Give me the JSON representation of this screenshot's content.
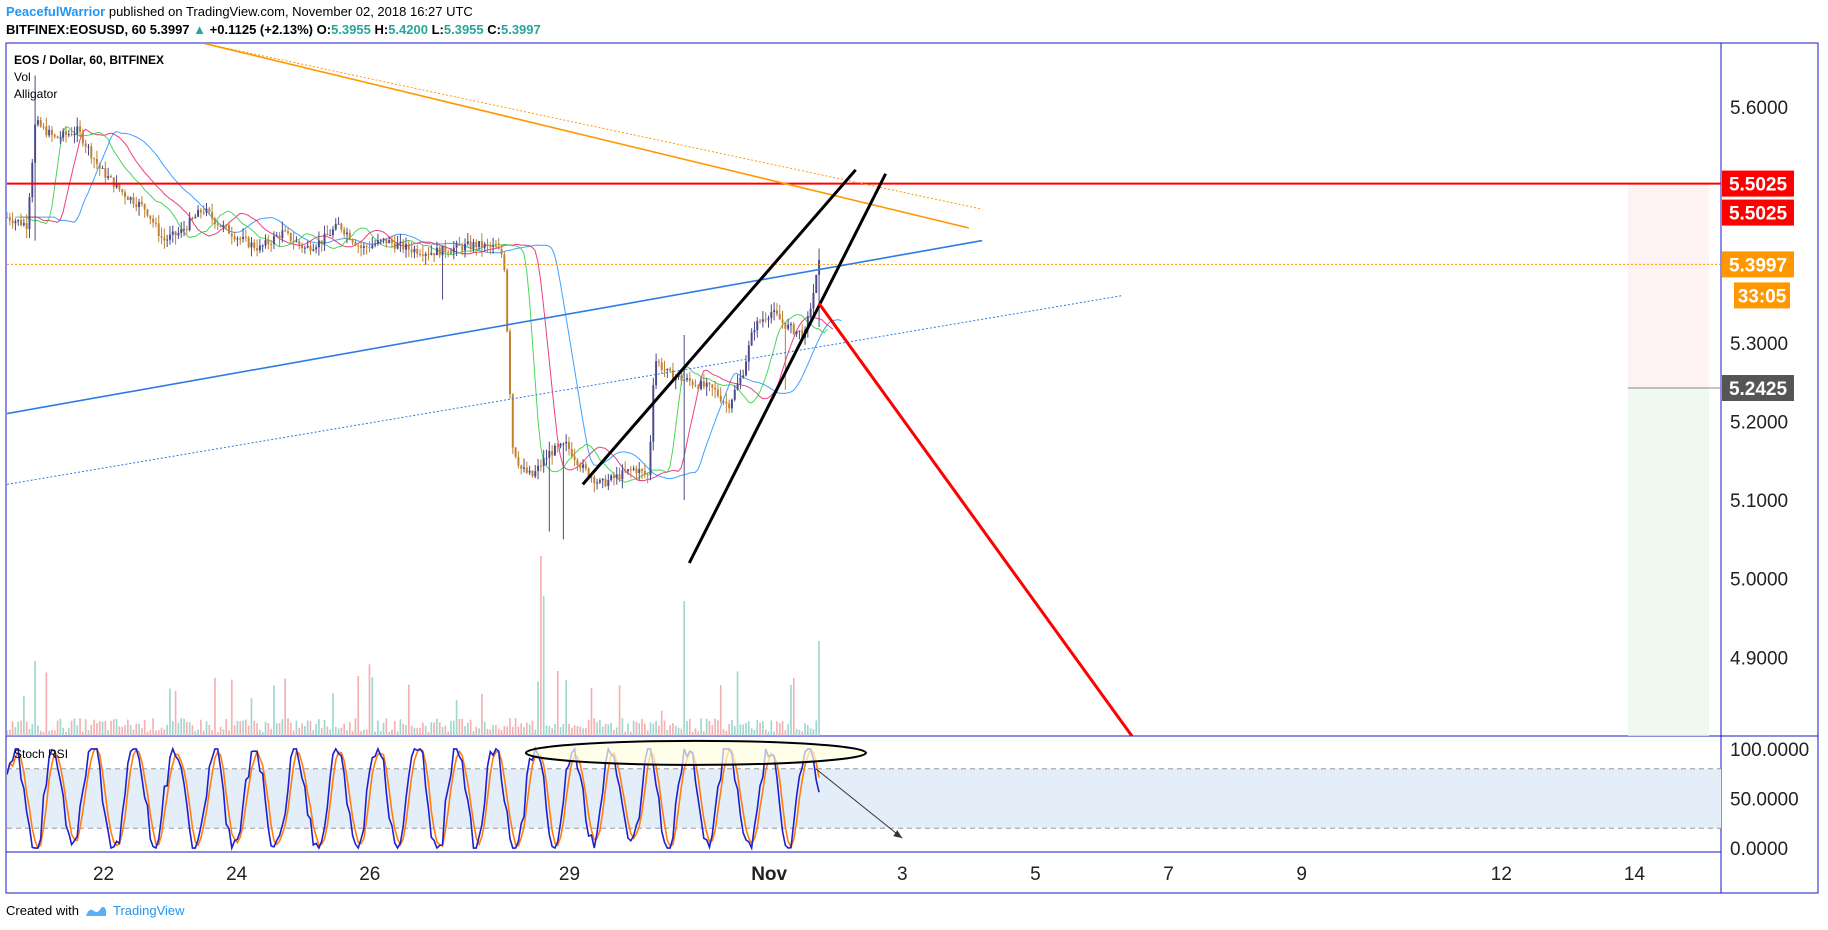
{
  "header": {
    "author": "PeacefulWarrior",
    "published": " published on TradingView.com, November 02, 2018 16:27 UTC",
    "symbol": "BITFINEX:EOSUSD, 60",
    "last": "5.3997",
    "change": "+0.1125 (+2.13%)",
    "o_label": "O:",
    "o": "5.3955",
    "h_label": "H:",
    "h": "5.4200",
    "l_label": "L:",
    "l": "5.3955",
    "c_label": "C:",
    "c": "5.3997"
  },
  "legend": {
    "title": "EOS / Dollar, 60, BITFINEX",
    "vol": "Vol",
    "alligator": "Alligator",
    "stoch": "Stoch RSI"
  },
  "footer": {
    "created_with": "Created with",
    "brand": "TradingView"
  },
  "colors": {
    "up": "#4a4a8a",
    "down": "#c08030",
    "resistance": "#ff0000",
    "trend_orange": "#ff9800",
    "trend_blue": "#2f7ae5",
    "border": "#1a1ac8"
  },
  "chart_data": [
    {
      "type": "candlestick",
      "title": "EOS / Dollar, 60, BITFINEX",
      "ylim": [
        4.8,
        5.68
      ],
      "y_ticks": [
        "5.6000",
        "5.3000",
        "5.2000",
        "5.1000",
        "5.0000",
        "4.9000"
      ],
      "y_tick_values": [
        5.6,
        5.3,
        5.2,
        5.1,
        5.0,
        4.9
      ],
      "x_ticks": [
        "22",
        "24",
        "26",
        "29",
        "Nov",
        "3",
        "5",
        "7",
        "9",
        "12",
        "14"
      ],
      "x_tick_days": [
        22,
        24,
        26,
        29,
        32,
        34,
        36,
        38,
        40,
        43,
        45
      ],
      "x_range_days": [
        20.55,
        46.3
      ],
      "price_labels": [
        {
          "text": "5.5025",
          "value": 5.5025,
          "kind": "resistance"
        },
        {
          "text": "5.5025",
          "value": 5.5025,
          "kind": "resistance-secondary"
        },
        {
          "text": "5.3997",
          "value": 5.3997,
          "kind": "last"
        },
        {
          "text": "33:05",
          "value": 5.3997,
          "kind": "countdown"
        },
        {
          "text": "5.2425",
          "value": 5.2425,
          "kind": "target"
        }
      ],
      "horizontal_lines": [
        {
          "value": 5.5025,
          "style": "solid",
          "color": "#ff0000"
        },
        {
          "value": 5.3997,
          "style": "dotted",
          "color": "#ff9800"
        }
      ],
      "trend_lines": [
        {
          "from": [
            23.5,
            5.681
          ],
          "to": [
            35.0,
            5.446
          ],
          "color": "#ff9800",
          "style": "solid"
        },
        {
          "from": [
            23.5,
            5.681
          ],
          "to": [
            35.2,
            5.47
          ],
          "color": "#ff9800",
          "style": "dotted"
        },
        {
          "from": [
            20.55,
            5.21
          ],
          "to": [
            35.2,
            5.43
          ],
          "color": "#2f7ae5",
          "style": "solid"
        },
        {
          "from": [
            20.55,
            5.12
          ],
          "to": [
            37.3,
            5.36
          ],
          "color": "#2f7ae5",
          "style": "dotted"
        },
        {
          "from": [
            29.2,
            5.12
          ],
          "to": [
            33.3,
            5.52
          ],
          "color": "#000000",
          "style": "solid"
        },
        {
          "from": [
            30.8,
            5.02
          ],
          "to": [
            33.75,
            5.515
          ],
          "color": "#000000",
          "style": "solid"
        },
        {
          "from": [
            32.75,
            5.35
          ],
          "to": [
            37.45,
            4.8
          ],
          "color": "#ff0000",
          "style": "solid"
        }
      ]
    },
    {
      "type": "bar",
      "name": "Vol",
      "note": "volume histogram at bottom of price pane"
    },
    {
      "type": "line",
      "name": "Stoch RSI",
      "ylim": [
        -3,
        112
      ],
      "y_ticks": [
        "100.0000",
        "50.0000",
        "0.0000"
      ],
      "y_tick_values": [
        100,
        50,
        0
      ],
      "bands": [
        80,
        20
      ],
      "arrow": {
        "from": [
          32.7,
          80
        ],
        "to": [
          34.0,
          10
        ]
      },
      "highlight_ellipse": {
        "center": [
          30.9,
          96
        ],
        "note": "overbought cluster"
      }
    }
  ]
}
